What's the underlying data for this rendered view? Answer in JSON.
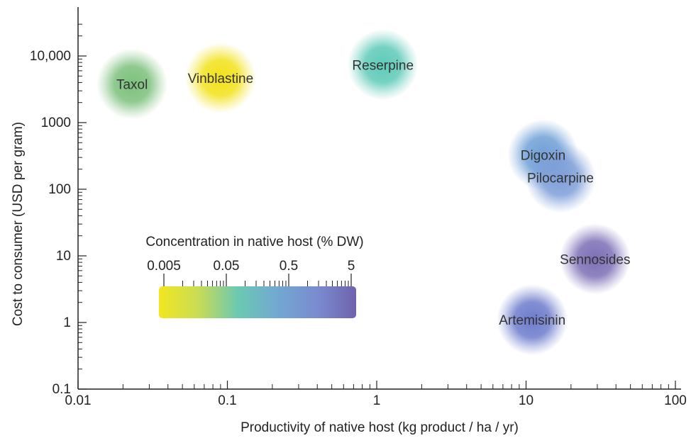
{
  "chart_data": {
    "type": "scatter",
    "xlabel": "Productivity of native host (kg product / ha / yr)",
    "ylabel": "Cost to consumer (USD per gram)",
    "x_scale": "log",
    "y_scale": "log",
    "xlim": [
      0.01,
      100
    ],
    "ylim": [
      0.1,
      30000
    ],
    "x_ticks": [
      {
        "value": 0.01,
        "label": "0.01"
      },
      {
        "value": 0.1,
        "label": "0.1"
      },
      {
        "value": 1,
        "label": "1"
      },
      {
        "value": 10,
        "label": "10"
      },
      {
        "value": 100,
        "label": "100"
      }
    ],
    "y_ticks": [
      {
        "value": 0.1,
        "label": "0.1"
      },
      {
        "value": 1,
        "label": "1"
      },
      {
        "value": 10,
        "label": "10"
      },
      {
        "value": 100,
        "label": "100"
      },
      {
        "value": 1000,
        "label": "1000"
      },
      {
        "value": 10000,
        "label": "10,000"
      }
    ],
    "points": [
      {
        "label": "Taxol",
        "x": 0.023,
        "y": 3800,
        "color": "#7cc07c"
      },
      {
        "label": "Vinblastine",
        "x": 0.09,
        "y": 4700,
        "color": "#f2e21a"
      },
      {
        "label": "Reserpine",
        "x": 1.1,
        "y": 7400,
        "color": "#5ecab8"
      },
      {
        "label": "Digoxin",
        "x": 13,
        "y": 330,
        "color": "#6fa0d6"
      },
      {
        "label": "Pilocarpine",
        "x": 17,
        "y": 150,
        "color": "#7e9fd8"
      },
      {
        "label": "Sennosides",
        "x": 29,
        "y": 9,
        "color": "#7d6fb5"
      },
      {
        "label": "Artemisinin",
        "x": 11,
        "y": 1.1,
        "color": "#6d7ccc"
      }
    ],
    "colorbar": {
      "title": "Concentration in native host (% DW)",
      "scale": "log",
      "range": [
        0.005,
        5
      ],
      "ticks": [
        {
          "value": 0.005,
          "label": "0.005"
        },
        {
          "value": 0.05,
          "label": "0.05"
        },
        {
          "value": 0.5,
          "label": "0.5"
        },
        {
          "value": 5,
          "label": "5"
        }
      ],
      "colors": [
        "#f2e620",
        "#c9dc55",
        "#6bc9b2",
        "#72a8d2",
        "#7a8cd0",
        "#6f63ad"
      ]
    },
    "grid": false,
    "legend": "colorbar-inside-left"
  }
}
